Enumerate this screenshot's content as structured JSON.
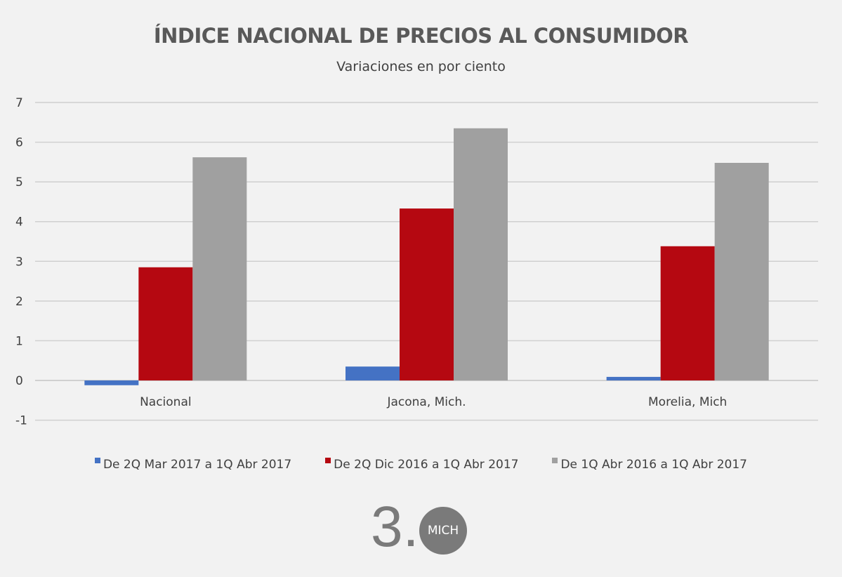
{
  "chart_data": {
    "type": "bar",
    "title": "ÍNDICE NACIONAL DE PRECIOS AL CONSUMIDOR",
    "subtitle": "Variaciones en por ciento",
    "categories": [
      "Nacional",
      "Jacona, Mich.",
      "Morelia, Mich"
    ],
    "series": [
      {
        "name": "De 2Q Mar 2017 a 1Q Abr 2017",
        "color": "#4472c4",
        "values": [
          -0.12,
          0.35,
          0.09
        ]
      },
      {
        "name": "De 2Q Dic 2016 a 1Q Abr 2017",
        "color": "#b50811",
        "values": [
          2.85,
          4.33,
          3.38
        ]
      },
      {
        "name": "De 1Q Abr 2016 a 1Q Abr 2017",
        "color": "#a0a0a0",
        "values": [
          5.62,
          6.35,
          5.48
        ]
      }
    ],
    "yticks": [
      "-1",
      "0",
      "1",
      "2",
      "3",
      "4",
      "5",
      "6",
      "7"
    ],
    "ylim": [
      -1,
      7
    ],
    "grid": true,
    "legend": "bottom"
  },
  "logo": {
    "number": "3.",
    "badge": "MICH"
  }
}
